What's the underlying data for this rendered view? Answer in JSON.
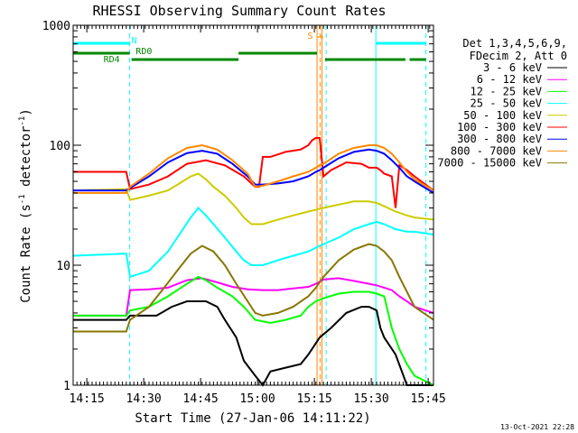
{
  "chart_data": {
    "type": "line",
    "title": "RHESSI Observing Summary Count Rates",
    "xlabel": "Start Time (27-Jan-06 14:11:22)",
    "ylabel_main": "Count Rate (s",
    "ylabel_sup": "-1",
    "ylabel_tail": " detector",
    "ylabel_sup2": "-1",
    "ylabel_end": ")",
    "yscale": "log",
    "ylim": [
      1,
      1000
    ],
    "xlim_minutes": [
      0,
      95
    ],
    "x_ticks": [
      {
        "m": 3.6,
        "label": "14:15"
      },
      {
        "m": 18.6,
        "label": "14:30"
      },
      {
        "m": 33.6,
        "label": "14:45"
      },
      {
        "m": 48.6,
        "label": "15:00"
      },
      {
        "m": 63.6,
        "label": "15:15"
      },
      {
        "m": 78.6,
        "label": "15:30"
      },
      {
        "m": 93.6,
        "label": "15:45"
      }
    ],
    "y_ticks": [
      {
        "v": 1,
        "label": "1"
      },
      {
        "v": 10,
        "label": "10"
      },
      {
        "v": 100,
        "label": "100"
      },
      {
        "v": 1000,
        "label": "1000"
      }
    ],
    "legend_header": [
      "Det 1,3,4,5,6,9,",
      "FDecim 2, Att 0"
    ],
    "series": [
      {
        "name": "3 - 6 keV",
        "color": "#000000",
        "x": [
          0,
          14,
          15,
          22,
          26,
          30,
          35,
          38,
          40,
          43,
          45,
          48,
          50,
          52,
          56,
          60,
          62,
          65,
          68,
          72,
          76,
          78,
          80,
          81,
          82,
          85,
          88,
          90,
          95
        ],
        "y": [
          3.5,
          3.5,
          3.8,
          3.8,
          4.5,
          5.0,
          5.0,
          4.5,
          3.5,
          2.5,
          1.6,
          1.2,
          1.0,
          1.3,
          1.4,
          1.5,
          1.8,
          2.5,
          3.0,
          4.0,
          4.5,
          4.5,
          4.2,
          3.0,
          2.5,
          1.8,
          1.0,
          1.0,
          1.0
        ]
      },
      {
        "name": "6 - 12 keV",
        "color": "#ff00ff",
        "x": [
          0,
          14,
          15,
          20,
          25,
          30,
          34,
          38,
          42,
          46,
          50,
          54,
          58,
          62,
          64,
          66,
          70,
          74,
          78,
          80,
          82,
          84,
          86,
          88,
          90,
          95
        ],
        "y": [
          3.8,
          3.8,
          6.2,
          6.3,
          6.5,
          7.5,
          7.8,
          7.2,
          6.6,
          6.3,
          6.2,
          6.2,
          6.4,
          6.6,
          7.0,
          7.6,
          7.8,
          7.4,
          7.0,
          6.8,
          6.5,
          6.2,
          5.5,
          5.0,
          4.5,
          4.0
        ]
      },
      {
        "name": "12 - 25 keV",
        "color": "#00ff00",
        "x": [
          0,
          14,
          15,
          20,
          25,
          30,
          33,
          35,
          38,
          42,
          45,
          48,
          52,
          56,
          60,
          62,
          64,
          66,
          70,
          74,
          78,
          80,
          82,
          84,
          86,
          88,
          90,
          95
        ],
        "y": [
          3.8,
          3.8,
          4.2,
          4.5,
          5.5,
          7.0,
          8.0,
          7.5,
          6.5,
          5.5,
          4.5,
          3.5,
          3.3,
          3.5,
          3.8,
          4.5,
          5.0,
          5.3,
          5.8,
          6.0,
          6.0,
          5.8,
          5.5,
          3.0,
          2.0,
          1.5,
          1.2,
          1.0
        ]
      },
      {
        "name": "25 - 50 keV",
        "color": "#00ffff",
        "x": [
          0,
          14,
          15,
          20,
          25,
          28,
          31,
          33,
          35,
          37,
          40,
          43,
          45,
          47,
          48,
          50,
          54,
          58,
          62,
          64,
          66,
          70,
          74,
          78,
          80,
          82,
          85,
          88,
          90,
          95
        ],
        "y": [
          12,
          12.5,
          8,
          9,
          13,
          18,
          25,
          30,
          26,
          22,
          17,
          13,
          11,
          10,
          10,
          10,
          11,
          12,
          13,
          14,
          15,
          17,
          20,
          22,
          23,
          22,
          20,
          19,
          19,
          18
        ]
      },
      {
        "name": "50 - 100 keV",
        "color": "#cccc00",
        "x": [
          0,
          14,
          15,
          20,
          25,
          28,
          31,
          33,
          35,
          37,
          40,
          43,
          45,
          47,
          48,
          50,
          54,
          58,
          62,
          64,
          66,
          70,
          74,
          78,
          80,
          82,
          85,
          88,
          90,
          95
        ],
        "y": [
          42,
          43,
          35,
          38,
          42,
          48,
          55,
          58,
          52,
          45,
          38,
          30,
          25,
          22,
          22,
          22,
          24,
          26,
          28,
          29,
          30,
          32,
          34,
          34,
          33,
          31,
          28,
          26,
          25,
          24
        ]
      },
      {
        "name": "100 - 300 keV",
        "color": "#ff0000",
        "x": [
          0,
          14,
          15,
          20,
          25,
          30,
          35,
          40,
          45,
          48,
          49,
          50,
          52,
          56,
          60,
          62,
          63,
          64,
          65,
          66,
          68,
          72,
          76,
          78,
          80,
          81,
          82,
          84,
          85,
          86,
          88,
          90,
          95
        ],
        "y": [
          60,
          60,
          43,
          47,
          55,
          70,
          75,
          68,
          55,
          45,
          45,
          80,
          80,
          88,
          92,
          100,
          110,
          115,
          115,
          55,
          62,
          72,
          70,
          65,
          65,
          62,
          58,
          55,
          30,
          68,
          62,
          55,
          42
        ]
      },
      {
        "name": "300 - 800 keV",
        "color": "#0000ff",
        "x": [
          0,
          14,
          15,
          20,
          25,
          30,
          34,
          38,
          42,
          46,
          48,
          50,
          54,
          58,
          62,
          64,
          65,
          66,
          70,
          74,
          78,
          80,
          82,
          84,
          86,
          88,
          90,
          95
        ],
        "y": [
          42,
          42,
          44,
          55,
          72,
          86,
          90,
          85,
          70,
          55,
          47,
          47,
          48,
          50,
          55,
          60,
          62,
          65,
          78,
          88,
          92,
          90,
          85,
          75,
          65,
          55,
          50,
          40
        ]
      },
      {
        "name": "800 - 7000 keV",
        "color": "#ff8800",
        "x": [
          0,
          14,
          15,
          20,
          25,
          30,
          34,
          38,
          42,
          46,
          48,
          50,
          54,
          58,
          62,
          64,
          65,
          66,
          70,
          74,
          78,
          80,
          82,
          84,
          86,
          88,
          90,
          95
        ],
        "y": [
          40,
          40,
          45,
          58,
          78,
          95,
          100,
          92,
          75,
          58,
          45,
          46,
          50,
          55,
          60,
          65,
          68,
          70,
          85,
          95,
          100,
          100,
          95,
          85,
          72,
          60,
          52,
          42
        ]
      },
      {
        "name": "7000 - 15000 keV",
        "color": "#887700",
        "x": [
          0,
          14,
          15,
          20,
          24,
          28,
          31,
          34,
          37,
          40,
          43,
          46,
          48,
          50,
          54,
          58,
          62,
          64,
          66,
          70,
          74,
          78,
          80,
          82,
          84,
          86,
          88,
          90,
          95
        ],
        "y": [
          2.8,
          2.8,
          3.5,
          4.5,
          6.5,
          9.5,
          12.5,
          14.5,
          13,
          10,
          7,
          5,
          4,
          3.8,
          4,
          4.5,
          5.5,
          6.5,
          8,
          11,
          13.5,
          15,
          14.5,
          13,
          11,
          8,
          6,
          4.5,
          3.5
        ]
      }
    ],
    "vertical_lines_solid": [
      {
        "m": 0.0,
        "color": "#00ffff"
      },
      {
        "m": 64.3,
        "color": "#ff8800"
      },
      {
        "m": 65.6,
        "color": "#ff8800"
      },
      {
        "m": 79.8,
        "color": "#00ffff"
      }
    ],
    "vertical_lines_dashed": [
      {
        "m": 14.9,
        "color": "#00ffff"
      },
      {
        "m": 65.1,
        "color": "#ff8800"
      },
      {
        "m": 66.7,
        "color": "#00ffff"
      },
      {
        "m": 93.0,
        "color": "#00ffff"
      }
    ],
    "cyan_bars": [
      {
        "m0": 0.0,
        "m1": 14.9
      },
      {
        "m0": 79.8,
        "m1": 93.0
      }
    ],
    "green_bars": [
      {
        "m0": 0.0,
        "m1": 14.9
      },
      {
        "m0": 15.4,
        "m1": 43.6
      },
      {
        "m0": 43.6,
        "m1": 64.3
      },
      {
        "m0": 66.4,
        "m1": 87.6
      },
      {
        "m0": 88.7,
        "m1": 93.0
      }
    ],
    "top_labels": [
      {
        "m": 15.4,
        "text": "N",
        "color": "#00ffff"
      },
      {
        "m": 16.5,
        "text": "RD0",
        "color": "#008800"
      },
      {
        "m": 8.0,
        "text": "RD4",
        "color": "#008800"
      },
      {
        "m": 61.8,
        "text": "S",
        "color": "#ff8800"
      }
    ],
    "timestamp": "13-Oct-2021 22:28"
  }
}
